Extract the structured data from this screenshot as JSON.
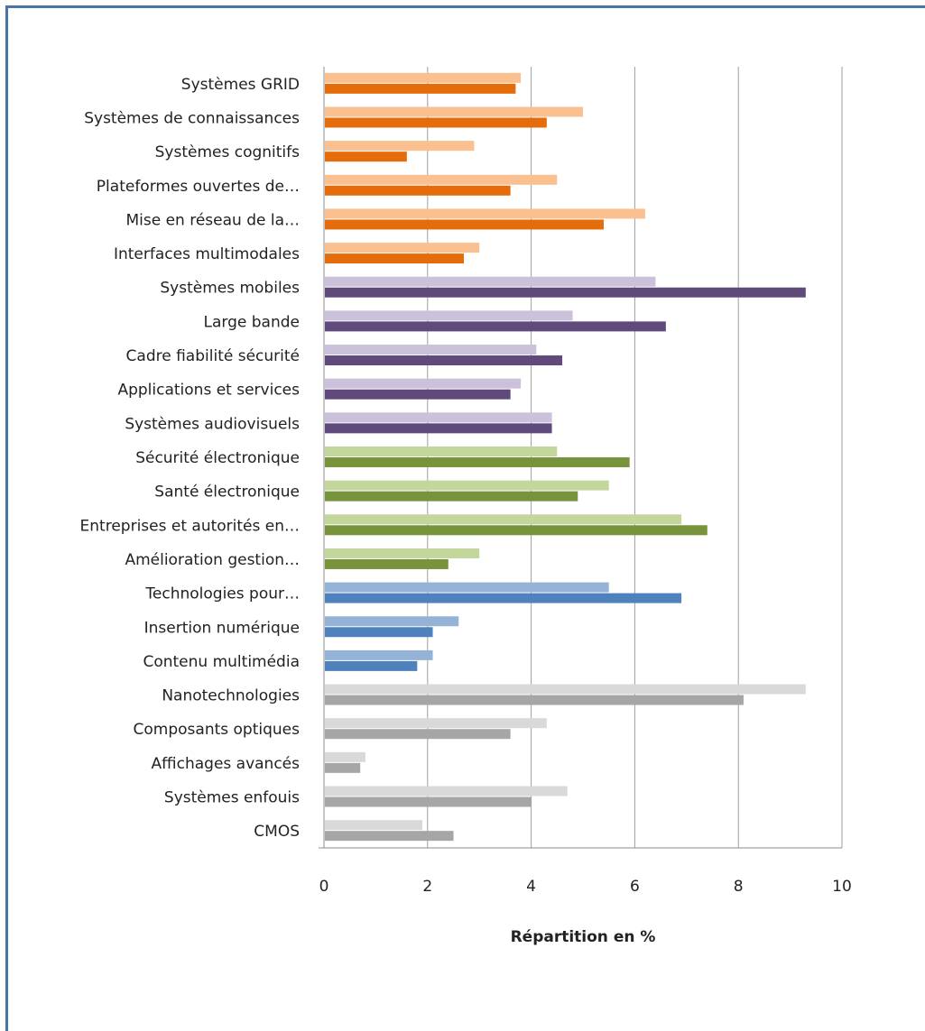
{
  "chart_data": {
    "type": "bar",
    "orientation": "horizontal",
    "title": "",
    "xlabel": "Répartition en %",
    "ylabel": "",
    "xlim": [
      0,
      10
    ],
    "x_ticks": [
      "0",
      "2",
      "4",
      "6",
      "8",
      "10"
    ],
    "grid": "vertical",
    "legend": "none",
    "categories": [
      "Systèmes GRID",
      "Systèmes de connaissances",
      "Systèmes cognitifs",
      "Plateformes ouvertes de…",
      "Mise en réseau de la…",
      "Interfaces multimodales",
      "Systèmes mobiles",
      "Large bande",
      "Cadre fiabilité sécurité",
      "Applications et services",
      "Systèmes audiovisuels",
      "Sécurité électronique",
      "Santé électronique",
      "Entreprises et autorités en…",
      "Amélioration gestion…",
      "Technologies pour…",
      "Insertion numérique",
      "Contenu multimédia",
      "Nanotechnologies",
      "Composants optiques",
      "Affichages avancés",
      "Systèmes enfouis",
      "CMOS"
    ],
    "group_colors": [
      "#e46c0a",
      "#604a7b",
      "#77933c",
      "#4f81bd",
      "#a6a6a6"
    ],
    "group_light_colors": [
      "#fac090",
      "#ccc1da",
      "#c3d69b",
      "#95b3d7",
      "#d9d9d9"
    ],
    "category_group": [
      0,
      0,
      0,
      0,
      0,
      0,
      1,
      1,
      1,
      1,
      1,
      2,
      2,
      2,
      2,
      3,
      3,
      3,
      4,
      4,
      4,
      4,
      4
    ],
    "series": [
      {
        "values": [
          3.8,
          5.0,
          2.9,
          4.5,
          6.2,
          3.0,
          6.4,
          4.8,
          4.1,
          3.8,
          4.4,
          4.5,
          5.5,
          6.9,
          3.0,
          5.5,
          2.6,
          2.1,
          9.3,
          4.3,
          0.8,
          4.7,
          1.9
        ]
      },
      {
        "values": [
          3.7,
          4.3,
          1.6,
          3.6,
          5.4,
          2.7,
          9.3,
          6.6,
          4.6,
          3.6,
          4.4,
          5.9,
          4.9,
          7.4,
          2.4,
          6.9,
          2.1,
          1.8,
          8.1,
          3.6,
          0.7,
          4.0,
          2.5
        ]
      }
    ]
  }
}
